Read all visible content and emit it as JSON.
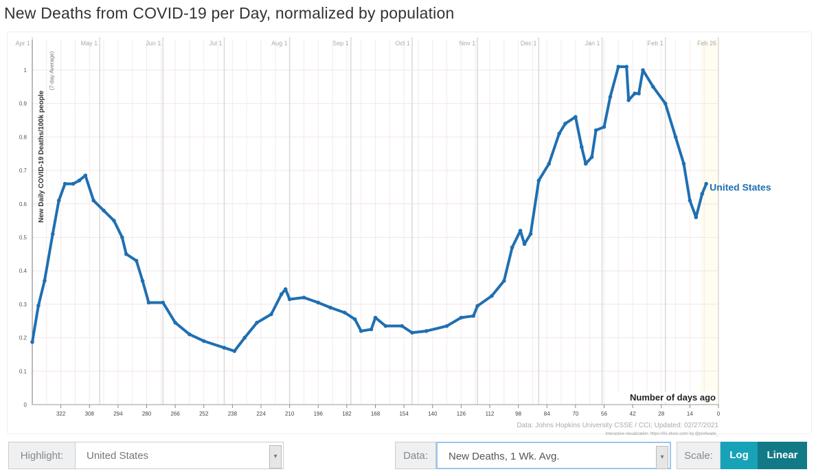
{
  "title": "New Deaths from COVID-19 per Day, normalized by population",
  "chart_data": {
    "type": "line",
    "title": "New Deaths from COVID-19 per Day, normalized by population",
    "ylabel": "New Daily COVID-19 Deaths/100k people",
    "ylabel_sub": "(7-day Average)",
    "xlabel": "Number of days ago",
    "xlim": [
      336,
      0
    ],
    "ylim": [
      0,
      1.05
    ],
    "yticks": [
      0,
      0.1,
      0.2,
      0.3,
      0.4,
      0.5,
      0.6,
      0.7,
      0.8,
      0.9,
      1
    ],
    "yticklabels": [
      "0",
      "0.1",
      "0.2",
      "0.3",
      "0.4",
      "0.5",
      "0.6",
      "0.7",
      "0.8",
      "0.9",
      "1"
    ],
    "xticks": [
      322,
      308,
      294,
      280,
      266,
      252,
      238,
      224,
      210,
      196,
      182,
      168,
      154,
      140,
      126,
      112,
      98,
      84,
      70,
      56,
      42,
      28,
      14,
      0
    ],
    "month_lines": [
      {
        "label": "Apr 1",
        "days_ago": 336
      },
      {
        "label": "May 1",
        "days_ago": 303
      },
      {
        "label": "Jun 1",
        "days_ago": 272
      },
      {
        "label": "Jul 1",
        "days_ago": 242
      },
      {
        "label": "Aug 1",
        "days_ago": 210
      },
      {
        "label": "Sep 1",
        "days_ago": 180
      },
      {
        "label": "Oct 1",
        "days_ago": 150
      },
      {
        "label": "Nov 1",
        "days_ago": 118
      },
      {
        "label": "Dec 1",
        "days_ago": 88
      },
      {
        "label": "Jan 1",
        "days_ago": 57
      },
      {
        "label": "Feb 1",
        "days_ago": 26
      },
      {
        "label": "Feb 26",
        "days_ago": 0
      }
    ],
    "grid": true,
    "series": [
      {
        "name": "United States",
        "color": "#1f6fb2",
        "x": [
          336,
          333,
          330,
          326,
          323,
          320,
          316,
          313,
          310,
          306,
          301,
          296,
          292,
          290,
          285,
          282,
          279,
          272,
          266,
          259,
          252,
          242,
          237,
          232,
          226,
          219,
          214,
          212,
          210,
          203,
          196,
          190,
          183,
          178,
          175,
          170,
          168,
          163,
          155,
          150,
          143,
          133,
          126,
          120,
          118,
          111,
          105,
          101,
          97,
          95,
          92,
          88,
          83,
          78,
          75,
          70,
          67,
          65,
          62,
          60,
          56,
          53,
          49,
          45,
          44,
          41,
          39,
          37,
          32,
          26,
          21,
          17,
          14,
          11,
          8,
          6
        ],
        "y": [
          0.187,
          0.296,
          0.37,
          0.51,
          0.61,
          0.66,
          0.66,
          0.67,
          0.685,
          0.61,
          0.58,
          0.55,
          0.5,
          0.45,
          0.43,
          0.37,
          0.305,
          0.305,
          0.245,
          0.21,
          0.19,
          0.17,
          0.16,
          0.2,
          0.245,
          0.27,
          0.33,
          0.345,
          0.315,
          0.32,
          0.305,
          0.29,
          0.275,
          0.255,
          0.22,
          0.225,
          0.26,
          0.235,
          0.235,
          0.215,
          0.22,
          0.235,
          0.26,
          0.265,
          0.295,
          0.325,
          0.37,
          0.47,
          0.52,
          0.48,
          0.51,
          0.67,
          0.72,
          0.81,
          0.84,
          0.86,
          0.77,
          0.72,
          0.74,
          0.82,
          0.83,
          0.92,
          1.01,
          1.01,
          0.91,
          0.93,
          0.93,
          1.0,
          0.95,
          0.9,
          0.8,
          0.72,
          0.61,
          0.56,
          0.63,
          0.66
        ]
      }
    ],
    "source": "Data: Johns Hopkins University CSSE / CCI; Updated: 02/27/2021",
    "credit": "Interactive visualization: https://91-divoc.com/ by @profwade_"
  },
  "controls": {
    "highlight_label": "Highlight:",
    "highlight_value": "United States",
    "data_label": "Data:",
    "data_value": "New Deaths, 1 Wk. Avg.",
    "scale_label": "Scale:",
    "log_label": "Log",
    "linear_label": "Linear"
  }
}
